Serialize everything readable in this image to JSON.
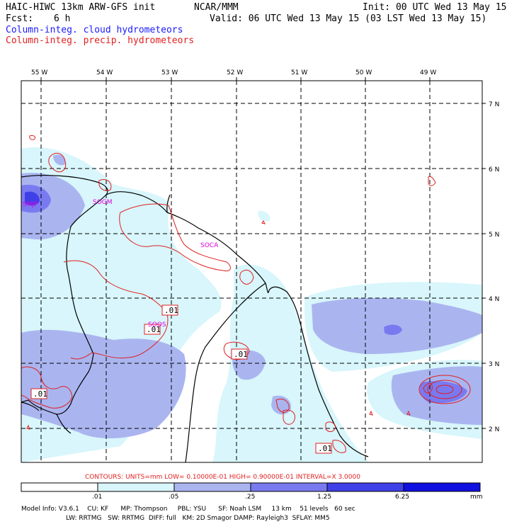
{
  "header": {
    "model": "HAIC-HIWC 13km ARW-GFS init",
    "org": "NCAR/MMM",
    "init": "Init: 00 UTC Wed 13 May 15",
    "fcst_label": "Fcst:",
    "fcst_value": "6 h",
    "valid": "Valid: 06 UTC Wed 13 May 15 (03 LST Wed 13 May 15)",
    "field1": "Column-integ. cloud hydrometeors",
    "field2": "Column-integ. precip. hydrometeors"
  },
  "map": {
    "lon_labels": [
      "55 W",
      "54 W",
      "53 W",
      "52 W",
      "51 W",
      "50 W",
      "49 W"
    ],
    "lat_labels": [
      "7 N",
      "6 N",
      "5 N",
      "4 N",
      "3 N",
      "2 N"
    ],
    "stations": [
      "SMJP",
      "SOGM",
      "SOCA",
      "SOOS"
    ],
    "contour_labels": [
      ".01",
      ".01",
      ".01",
      ".01",
      ".01"
    ],
    "colors": {
      "shade1": "#d8f6fb",
      "shade2": "#aab5f0",
      "shade3": "#7a7af0",
      "shade4": "#4040e8",
      "shade5": "#1010e0",
      "contour": "#e02020",
      "station": "#e000e0"
    }
  },
  "footer": {
    "contours": "CONTOURS:  UNITS=mm  LOW= 0.10000E-01  HIGH= 0.90000E-01  INTERVAL=X  3.0000",
    "colorbar_labels": [
      ".01",
      ".05",
      ".25",
      "1.25",
      "6.25"
    ],
    "units": "mm",
    "info_line1": "Model Info: V3.6.1    CU: KF      MP: Thompson     PBL: YSU      SF: Noah LSM     13 km    51 levels   60 sec",
    "info_line2": "                      LW: RRTMG   SW: RRTMG  DIFF: full   KM: 2D Smagor DAMP: Rayleigh3  SFLAY: MM5"
  }
}
